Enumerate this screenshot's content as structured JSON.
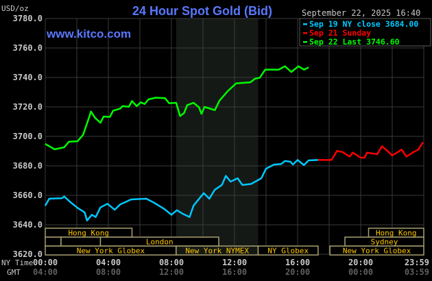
{
  "header": {
    "title": "24 Hour Spot Gold (Bid)",
    "site": "www.kitco.com",
    "unit": "USD/oz",
    "timestamp": "September 22, 2025 16:40"
  },
  "colors": {
    "background": "#000000",
    "title": "#5a78ff",
    "grid": "#3a3a3a",
    "shade": "#151915",
    "session_text": "#ffc800",
    "session_box": "#a8a070",
    "axis_text": "#c8c8c8",
    "gmt_text": "#606060"
  },
  "chart_data": {
    "type": "line",
    "title": "24 Hour Spot Gold (Bid)",
    "ylabel": "USD/oz",
    "xlim": [
      0,
      24
    ],
    "ylim": [
      3620,
      3780
    ],
    "grid": true,
    "legend_position": "top-right",
    "y_ticks": [
      "3620.0",
      "3640.0",
      "3660.0",
      "3680.0",
      "3700.0",
      "3720.0",
      "3740.0",
      "3760.0",
      "3780.0"
    ],
    "x_row_labels": {
      "ny": "NY Time",
      "gmt": "GMT"
    },
    "x_ticks_ny": [
      "00:00",
      "04:00",
      "08:00",
      "12:00",
      "16:00",
      "20:00",
      "23:59"
    ],
    "x_ticks_gmt": [
      "04:00",
      "08:00",
      "12:00",
      "16:00",
      "20:00",
      "00:00",
      "03:59"
    ],
    "x_tick_hours": [
      0,
      4,
      8,
      12,
      16,
      20,
      24
    ],
    "shaded_hours": [
      8.3,
      13.5
    ],
    "series": [
      {
        "name": "Sep 19 NY close 3684.00",
        "color": "#00c8ff",
        "x": [
          0,
          0.25,
          1.05,
          1.2,
          1.6,
          2.05,
          2.5,
          2.65,
          2.95,
          3.2,
          3.5,
          3.95,
          4.4,
          4.75,
          5.45,
          6.4,
          6.85,
          7.55,
          8.0,
          8.35,
          8.7,
          9.15,
          9.4,
          10.05,
          10.4,
          10.75,
          11.2,
          11.45,
          11.75,
          12.2,
          12.5,
          13.05,
          13.7,
          14.0,
          14.5,
          14.95,
          15.2,
          15.55,
          15.7,
          16.0,
          16.4,
          16.7,
          17.3
        ],
        "y": [
          3653.0,
          3657.7,
          3658.0,
          3659.2,
          3655.3,
          3651.5,
          3648.4,
          3642.9,
          3646.8,
          3645.3,
          3651.8,
          3654.3,
          3650.2,
          3653.8,
          3657.2,
          3657.7,
          3655.3,
          3650.7,
          3646.8,
          3649.9,
          3647.6,
          3645.3,
          3653.0,
          3661.5,
          3657.7,
          3663.8,
          3667.0,
          3673.2,
          3669.3,
          3671.6,
          3667.0,
          3667.7,
          3671.6,
          3678.1,
          3680.9,
          3681.2,
          3683.3,
          3682.8,
          3680.9,
          3684.0,
          3680.5,
          3683.7,
          3684.0
        ]
      },
      {
        "name": "Sep 21 Sunday",
        "color": "#ff0000",
        "x": [
          17.3,
          18.15,
          18.5,
          18.85,
          19.3,
          19.5,
          20.0,
          20.25,
          20.4,
          21.05,
          21.35,
          21.6,
          22.0,
          22.25,
          22.6,
          22.9,
          23.35,
          23.65,
          23.95
        ],
        "y": [
          3684.0,
          3684.0,
          3690.2,
          3689.4,
          3686.3,
          3689.0,
          3685.6,
          3685.6,
          3689.0,
          3687.9,
          3693.3,
          3691.0,
          3687.1,
          3688.7,
          3691.0,
          3686.3,
          3689.4,
          3691.0,
          3696.0
        ]
      },
      {
        "name": "Sep 22 Last 3746.60",
        "color": "#00ff00",
        "x": [
          0,
          0.6,
          1.2,
          1.5,
          2.05,
          2.4,
          2.7,
          2.9,
          3.15,
          3.5,
          3.7,
          4.1,
          4.3,
          4.75,
          4.9,
          5.3,
          5.5,
          5.8,
          6.05,
          6.3,
          6.55,
          7.0,
          7.6,
          7.85,
          8.3,
          8.55,
          8.8,
          9.0,
          9.4,
          9.75,
          9.9,
          10.1,
          10.75,
          11.05,
          11.55,
          12.1,
          13.0,
          13.3,
          13.6,
          13.95,
          14.8,
          15.2,
          15.6,
          16.05,
          16.4,
          16.7
        ],
        "y": [
          3694.9,
          3691.2,
          3692.6,
          3696.4,
          3696.7,
          3701.1,
          3710.4,
          3716.9,
          3712.7,
          3709.2,
          3713.5,
          3713.2,
          3717.4,
          3718.9,
          3720.5,
          3720.1,
          3724.0,
          3720.5,
          3723.1,
          3722.0,
          3725.1,
          3726.3,
          3725.9,
          3722.5,
          3722.8,
          3713.8,
          3715.8,
          3721.2,
          3722.8,
          3719.7,
          3715.3,
          3720.0,
          3717.8,
          3724.3,
          3730.5,
          3736.0,
          3736.7,
          3739.1,
          3739.8,
          3745.3,
          3745.3,
          3747.6,
          3743.7,
          3747.6,
          3745.3,
          3746.8
        ]
      }
    ]
  },
  "sessions": [
    {
      "label": "Hong Kong",
      "row": 0,
      "start": 0,
      "end": 5.5
    },
    {
      "label": "Hong Kong",
      "row": 0,
      "start": 20.5,
      "end": 24
    },
    {
      "label": "",
      "row": 1,
      "start": 0,
      "end": 1
    },
    {
      "label": "",
      "row": 1,
      "start": 1,
      "end": 3.5
    },
    {
      "label": "London",
      "row": 1,
      "start": 3.5,
      "end": 11
    },
    {
      "label": "Sydney",
      "row": 1,
      "start": 19,
      "end": 24
    },
    {
      "label": "New York Globex",
      "row": 2,
      "start": 0,
      "end": 8.3
    },
    {
      "label": "New York NYMEX",
      "row": 2,
      "start": 8.3,
      "end": 13.5
    },
    {
      "label": "NY Globex",
      "row": 2,
      "start": 13.5,
      "end": 17.3
    },
    {
      "label": "New York Globex",
      "row": 2,
      "start": 18.05,
      "end": 24
    }
  ]
}
